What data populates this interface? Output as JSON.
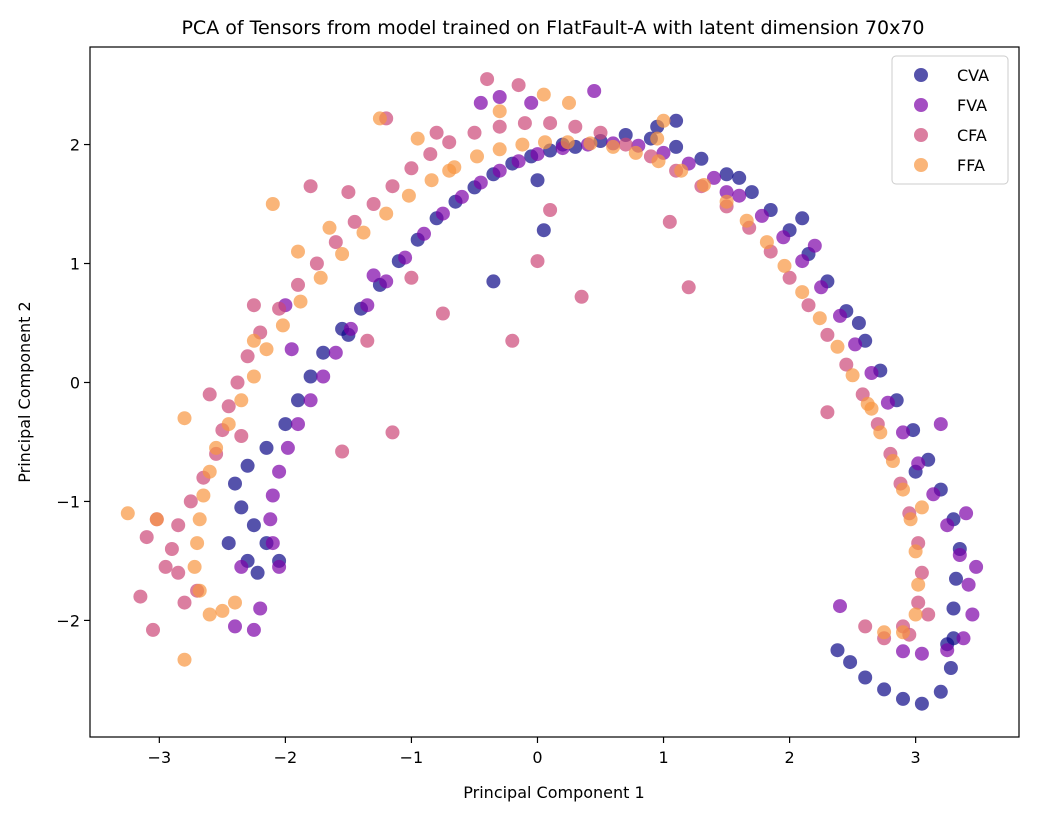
{
  "chart_data": {
    "type": "scatter",
    "title": "PCA of Tensors from model trained on FlatFault-A with latent dimension 70x70",
    "xlabel": "Principal Component 1",
    "ylabel": "Principal Component 2",
    "xlim": [
      -3.55,
      3.82
    ],
    "ylim": [
      -2.98,
      2.82
    ],
    "xticks": [
      -3,
      -2,
      -1,
      0,
      1,
      2,
      3
    ],
    "yticks": [
      -2,
      -1,
      0,
      1,
      2
    ],
    "xtick_labels": [
      "−3",
      "−2",
      "−1",
      "0",
      "1",
      "2",
      "3"
    ],
    "ytick_labels": [
      "−2",
      "−1",
      "0",
      "1",
      "2"
    ],
    "grid": false,
    "legend_position": "top-right",
    "series": [
      {
        "name": "CVA",
        "color": "#0d0887",
        "alpha": 0.7,
        "points": [
          [
            -2.05,
            -1.5
          ],
          [
            -2.15,
            -1.35
          ],
          [
            -2.25,
            -1.2
          ],
          [
            -2.35,
            -1.05
          ],
          [
            -2.4,
            -0.85
          ],
          [
            -2.3,
            -0.7
          ],
          [
            -2.15,
            -0.55
          ],
          [
            -2.0,
            -0.35
          ],
          [
            -1.9,
            -0.15
          ],
          [
            -1.8,
            0.05
          ],
          [
            -1.7,
            0.25
          ],
          [
            -1.55,
            0.45
          ],
          [
            -1.4,
            0.62
          ],
          [
            -1.25,
            0.82
          ],
          [
            -1.1,
            1.02
          ],
          [
            -0.95,
            1.2
          ],
          [
            -0.8,
            1.38
          ],
          [
            -0.65,
            1.52
          ],
          [
            -0.5,
            1.64
          ],
          [
            -0.35,
            1.75
          ],
          [
            -0.2,
            1.84
          ],
          [
            -0.05,
            1.9
          ],
          [
            0.1,
            1.95
          ],
          [
            0.3,
            1.98
          ],
          [
            0.5,
            2.03
          ],
          [
            0.7,
            2.08
          ],
          [
            0.9,
            2.05
          ],
          [
            1.1,
            1.98
          ],
          [
            1.3,
            1.88
          ],
          [
            1.5,
            1.75
          ],
          [
            1.7,
            1.6
          ],
          [
            1.85,
            1.45
          ],
          [
            2.0,
            1.28
          ],
          [
            2.15,
            1.08
          ],
          [
            2.3,
            0.85
          ],
          [
            2.45,
            0.6
          ],
          [
            2.6,
            0.35
          ],
          [
            2.72,
            0.1
          ],
          [
            2.85,
            -0.15
          ],
          [
            2.98,
            -0.4
          ],
          [
            3.1,
            -0.65
          ],
          [
            3.2,
            -0.9
          ],
          [
            3.3,
            -1.15
          ],
          [
            3.35,
            -1.4
          ],
          [
            3.32,
            -1.65
          ],
          [
            3.3,
            -1.9
          ],
          [
            3.3,
            -2.15
          ],
          [
            3.28,
            -2.4
          ],
          [
            3.2,
            -2.6
          ],
          [
            3.05,
            -2.7
          ],
          [
            2.9,
            -2.66
          ],
          [
            2.75,
            -2.58
          ],
          [
            2.6,
            -2.48
          ],
          [
            2.48,
            -2.35
          ],
          [
            2.38,
            -2.25
          ],
          [
            1.1,
            2.2
          ],
          [
            0.95,
            2.15
          ],
          [
            -0.35,
            0.85
          ],
          [
            0.05,
            1.28
          ],
          [
            0.0,
            1.7
          ],
          [
            -2.3,
            -1.5
          ],
          [
            -2.45,
            -1.35
          ],
          [
            -2.22,
            -1.6
          ],
          [
            2.1,
            1.38
          ],
          [
            3.0,
            -0.75
          ],
          [
            -1.5,
            0.4
          ],
          [
            0.2,
            2.0
          ],
          [
            1.6,
            1.72
          ],
          [
            2.55,
            0.5
          ],
          [
            3.25,
            -2.2
          ]
        ]
      },
      {
        "name": "FVA",
        "color": "#7e03a8",
        "alpha": 0.7,
        "points": [
          [
            -2.05,
            -1.55
          ],
          [
            -2.1,
            -1.35
          ],
          [
            -2.12,
            -1.15
          ],
          [
            -2.1,
            -0.95
          ],
          [
            -2.05,
            -0.75
          ],
          [
            -1.98,
            -0.55
          ],
          [
            -1.9,
            -0.35
          ],
          [
            -1.8,
            -0.15
          ],
          [
            -1.7,
            0.05
          ],
          [
            -1.6,
            0.25
          ],
          [
            -1.48,
            0.45
          ],
          [
            -1.35,
            0.65
          ],
          [
            -1.2,
            0.85
          ],
          [
            -1.05,
            1.05
          ],
          [
            -0.9,
            1.25
          ],
          [
            -0.75,
            1.42
          ],
          [
            -0.6,
            1.56
          ],
          [
            -0.45,
            1.68
          ],
          [
            -0.3,
            1.78
          ],
          [
            -0.15,
            1.86
          ],
          [
            0.0,
            1.92
          ],
          [
            0.2,
            1.97
          ],
          [
            0.4,
            2.0
          ],
          [
            0.6,
            2.01
          ],
          [
            0.8,
            1.99
          ],
          [
            1.0,
            1.93
          ],
          [
            1.2,
            1.84
          ],
          [
            1.4,
            1.72
          ],
          [
            1.6,
            1.57
          ],
          [
            1.78,
            1.4
          ],
          [
            1.95,
            1.22
          ],
          [
            2.1,
            1.02
          ],
          [
            2.25,
            0.8
          ],
          [
            2.4,
            0.56
          ],
          [
            2.52,
            0.32
          ],
          [
            2.65,
            0.08
          ],
          [
            2.78,
            -0.17
          ],
          [
            2.9,
            -0.42
          ],
          [
            3.02,
            -0.68
          ],
          [
            3.14,
            -0.94
          ],
          [
            3.25,
            -1.2
          ],
          [
            3.35,
            -1.45
          ],
          [
            3.42,
            -1.7
          ],
          [
            3.45,
            -1.95
          ],
          [
            3.38,
            -2.15
          ],
          [
            3.25,
            -2.25
          ],
          [
            3.05,
            -2.28
          ],
          [
            2.9,
            -2.26
          ],
          [
            0.45,
            2.45
          ],
          [
            -0.3,
            2.4
          ],
          [
            -0.45,
            2.35
          ],
          [
            3.2,
            -0.35
          ],
          [
            2.4,
            -1.88
          ],
          [
            -2.4,
            -2.05
          ],
          [
            -2.25,
            -2.08
          ],
          [
            -1.95,
            0.28
          ],
          [
            -2.0,
            0.65
          ],
          [
            -2.2,
            -1.9
          ],
          [
            3.48,
            -1.55
          ],
          [
            -2.35,
            -1.55
          ],
          [
            -0.05,
            2.35
          ],
          [
            1.5,
            1.6
          ],
          [
            2.2,
            1.15
          ],
          [
            3.4,
            -1.1
          ],
          [
            -1.3,
            0.9
          ]
        ]
      },
      {
        "name": "CFA",
        "color": "#cc4778",
        "alpha": 0.7,
        "points": [
          [
            -2.8,
            -1.85
          ],
          [
            -2.85,
            -1.6
          ],
          [
            -2.9,
            -1.4
          ],
          [
            -2.85,
            -1.2
          ],
          [
            -2.75,
            -1.0
          ],
          [
            -2.65,
            -0.8
          ],
          [
            -2.55,
            -0.6
          ],
          [
            -2.5,
            -0.4
          ],
          [
            -2.45,
            -0.2
          ],
          [
            -2.38,
            0.0
          ],
          [
            -2.3,
            0.22
          ],
          [
            -2.2,
            0.42
          ],
          [
            -2.05,
            0.62
          ],
          [
            -1.9,
            0.82
          ],
          [
            -1.75,
            1.0
          ],
          [
            -1.6,
            1.18
          ],
          [
            -1.45,
            1.35
          ],
          [
            -1.3,
            1.5
          ],
          [
            -1.15,
            1.65
          ],
          [
            -1.0,
            1.8
          ],
          [
            -0.85,
            1.92
          ],
          [
            -0.7,
            2.02
          ],
          [
            -0.5,
            2.1
          ],
          [
            -0.3,
            2.15
          ],
          [
            -0.1,
            2.18
          ],
          [
            0.1,
            2.18
          ],
          [
            0.3,
            2.15
          ],
          [
            0.5,
            2.1
          ],
          [
            0.7,
            2.0
          ],
          [
            0.9,
            1.9
          ],
          [
            1.1,
            1.78
          ],
          [
            1.3,
            1.65
          ],
          [
            1.5,
            1.48
          ],
          [
            1.68,
            1.3
          ],
          [
            1.85,
            1.1
          ],
          [
            2.0,
            0.88
          ],
          [
            2.15,
            0.65
          ],
          [
            2.3,
            0.4
          ],
          [
            2.45,
            0.15
          ],
          [
            2.58,
            -0.1
          ],
          [
            2.7,
            -0.35
          ],
          [
            2.8,
            -0.6
          ],
          [
            2.88,
            -0.85
          ],
          [
            2.95,
            -1.1
          ],
          [
            3.02,
            -1.35
          ],
          [
            3.05,
            -1.6
          ],
          [
            3.02,
            -1.85
          ],
          [
            2.9,
            -2.05
          ],
          [
            2.75,
            -2.15
          ],
          [
            2.6,
            -2.05
          ],
          [
            -3.05,
            -2.08
          ],
          [
            -3.15,
            -1.8
          ],
          [
            -3.1,
            -1.3
          ],
          [
            -2.6,
            -0.1
          ],
          [
            -2.25,
            0.65
          ],
          [
            -1.8,
            1.65
          ],
          [
            -1.5,
            1.6
          ],
          [
            -1.2,
            2.22
          ],
          [
            -0.8,
            2.1
          ],
          [
            -0.4,
            2.55
          ],
          [
            -0.2,
            0.35
          ],
          [
            0.0,
            1.02
          ],
          [
            0.35,
            0.72
          ],
          [
            -1.0,
            0.88
          ],
          [
            -1.15,
            -0.42
          ],
          [
            -1.55,
            -0.58
          ],
          [
            -1.35,
            0.35
          ],
          [
            1.2,
            0.8
          ],
          [
            2.3,
            -0.25
          ],
          [
            -0.15,
            2.5
          ],
          [
            1.05,
            1.35
          ],
          [
            0.1,
            1.45
          ],
          [
            -0.75,
            0.58
          ],
          [
            -2.7,
            -1.75
          ],
          [
            -2.95,
            -1.55
          ],
          [
            -3.02,
            -1.15
          ],
          [
            -2.35,
            -0.45
          ],
          [
            3.1,
            -1.95
          ],
          [
            2.95,
            -2.12
          ]
        ]
      },
      {
        "name": "FFA",
        "color": "#f89540",
        "alpha": 0.7,
        "points": [
          [
            -2.6,
            -1.95
          ],
          [
            -2.68,
            -1.75
          ],
          [
            -2.72,
            -1.55
          ],
          [
            -2.7,
            -1.35
          ],
          [
            -2.68,
            -1.15
          ],
          [
            -2.65,
            -0.95
          ],
          [
            -2.6,
            -0.75
          ],
          [
            -2.55,
            -0.55
          ],
          [
            -2.45,
            -0.35
          ],
          [
            -2.35,
            -0.15
          ],
          [
            -2.25,
            0.05
          ],
          [
            -2.15,
            0.28
          ],
          [
            -2.02,
            0.48
          ],
          [
            -1.88,
            0.68
          ],
          [
            -1.72,
            0.88
          ],
          [
            -1.55,
            1.08
          ],
          [
            -1.38,
            1.26
          ],
          [
            -1.2,
            1.42
          ],
          [
            -1.02,
            1.57
          ],
          [
            -0.84,
            1.7
          ],
          [
            -0.66,
            1.81
          ],
          [
            -0.48,
            1.9
          ],
          [
            -0.3,
            1.96
          ],
          [
            -0.12,
            2.0
          ],
          [
            0.06,
            2.02
          ],
          [
            0.24,
            2.02
          ],
          [
            0.42,
            2.01
          ],
          [
            0.6,
            1.98
          ],
          [
            0.78,
            1.93
          ],
          [
            0.96,
            1.86
          ],
          [
            1.14,
            1.78
          ],
          [
            1.32,
            1.66
          ],
          [
            1.5,
            1.52
          ],
          [
            1.66,
            1.36
          ],
          [
            1.82,
            1.18
          ],
          [
            1.96,
            0.98
          ],
          [
            2.1,
            0.76
          ],
          [
            2.24,
            0.54
          ],
          [
            2.38,
            0.3
          ],
          [
            2.5,
            0.06
          ],
          [
            2.62,
            -0.18
          ],
          [
            2.72,
            -0.42
          ],
          [
            2.82,
            -0.66
          ],
          [
            2.9,
            -0.9
          ],
          [
            2.96,
            -1.15
          ],
          [
            3.0,
            -1.42
          ],
          [
            3.02,
            -1.7
          ],
          [
            3.0,
            -1.95
          ],
          [
            2.9,
            -2.1
          ],
          [
            2.75,
            -2.1
          ],
          [
            -3.25,
            -1.1
          ],
          [
            -3.02,
            -1.15
          ],
          [
            -2.8,
            -2.33
          ],
          [
            -2.8,
            -0.3
          ],
          [
            -2.1,
            1.5
          ],
          [
            -1.9,
            1.1
          ],
          [
            -1.65,
            1.3
          ],
          [
            -1.25,
            2.22
          ],
          [
            -0.7,
            1.78
          ],
          [
            -0.3,
            2.28
          ],
          [
            0.05,
            2.42
          ],
          [
            0.25,
            2.35
          ],
          [
            1.0,
            2.2
          ],
          [
            -2.4,
            -1.85
          ],
          [
            -2.5,
            -1.92
          ],
          [
            -2.25,
            0.35
          ],
          [
            2.65,
            -0.22
          ],
          [
            3.05,
            -1.05
          ],
          [
            -0.95,
            2.05
          ],
          [
            0.95,
            2.05
          ]
        ]
      }
    ]
  }
}
